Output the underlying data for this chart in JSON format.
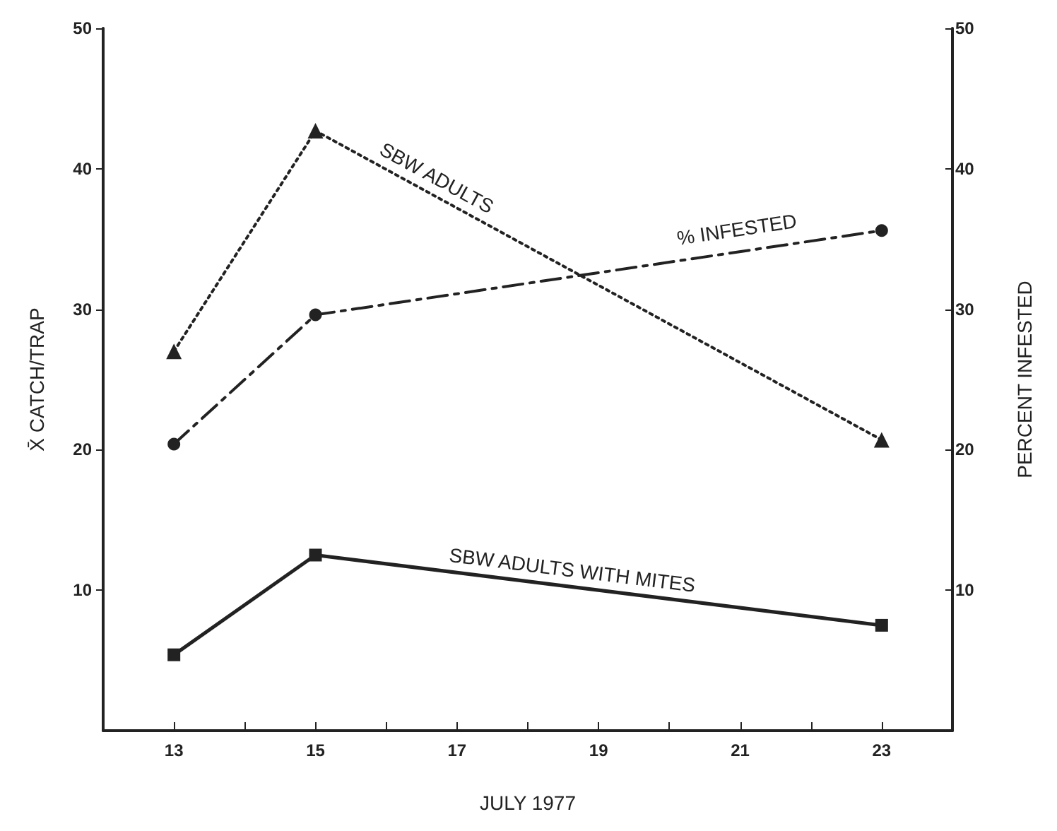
{
  "chart_data": {
    "type": "line",
    "xlabel": "JULY 1977",
    "ylabel": "X̄ CATCH/TRAP",
    "y2label": "PERCENT INFESTED",
    "xlim": [
      12,
      24
    ],
    "xticks": [
      13,
      {
        "value": 14,
        "label": null
      },
      15,
      {
        "value": 16,
        "label": null
      },
      17,
      {
        "value": 18,
        "label": null
      },
      19,
      {
        "value": 20,
        "label": null
      },
      21,
      {
        "value": 22,
        "label": null
      },
      23
    ],
    "ylim": [
      0,
      50
    ],
    "yticks": [
      10,
      20,
      30,
      40,
      50
    ],
    "y2lim": [
      0,
      50
    ],
    "y2ticks": [
      10,
      20,
      30,
      40,
      50
    ],
    "grid": false,
    "legend": false,
    "series": [
      {
        "name": "SBW ADULTS",
        "color": "#222222",
        "x": [
          13,
          15,
          23
        ],
        "values": [
          27,
          42.7,
          20.7
        ],
        "marker": "triangle",
        "line_style": "dotted"
      },
      {
        "name": "% INFESTED",
        "color": "#222222",
        "x": [
          13,
          15,
          23
        ],
        "values": [
          20.4,
          29.6,
          35.6
        ],
        "marker": "circle",
        "line_style": "dashed"
      },
      {
        "name": "SBW ADULTS WITH MITES",
        "color": "#222222",
        "x": [
          13,
          15,
          23
        ],
        "values": [
          5.4,
          12.5,
          7.5
        ],
        "marker": "square",
        "line_style": "solid"
      }
    ]
  }
}
